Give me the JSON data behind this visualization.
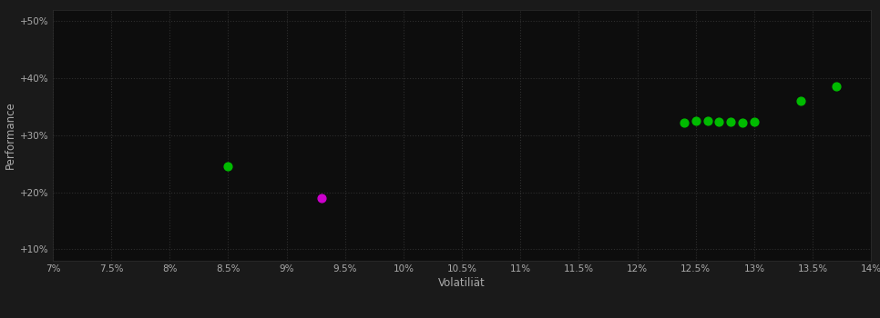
{
  "background_color": "#1a1a1a",
  "plot_bg_color": "#0d0d0d",
  "grid_color": "#2e2e2e",
  "text_color": "#aaaaaa",
  "xlabel": "Volatiliät",
  "ylabel": "Performance",
  "xlim": [
    0.07,
    0.14
  ],
  "ylim": [
    0.08,
    0.52
  ],
  "xticks": [
    0.07,
    0.075,
    0.08,
    0.085,
    0.09,
    0.095,
    0.1,
    0.105,
    0.11,
    0.115,
    0.12,
    0.125,
    0.13,
    0.135,
    0.14
  ],
  "yticks": [
    0.1,
    0.2,
    0.3,
    0.4,
    0.5
  ],
  "ytick_labels": [
    "+10%",
    "+20%",
    "+30%",
    "+40%",
    "+50%"
  ],
  "xtick_labels": [
    "7%",
    "7.5%",
    "8%",
    "8.5%",
    "9%",
    "9.5%",
    "10%",
    "10.5%",
    "11%",
    "11.5%",
    "12%",
    "12.5%",
    "13%",
    "13.5%",
    "14%"
  ],
  "green_points": [
    [
      0.085,
      0.245
    ],
    [
      0.124,
      0.322
    ],
    [
      0.125,
      0.325
    ],
    [
      0.126,
      0.325
    ],
    [
      0.127,
      0.324
    ],
    [
      0.128,
      0.323
    ],
    [
      0.129,
      0.322
    ],
    [
      0.13,
      0.323
    ],
    [
      0.134,
      0.36
    ],
    [
      0.137,
      0.386
    ]
  ],
  "magenta_points": [
    [
      0.093,
      0.19
    ]
  ],
  "green_color": "#00bb00",
  "magenta_color": "#cc00cc",
  "marker_size": 40
}
